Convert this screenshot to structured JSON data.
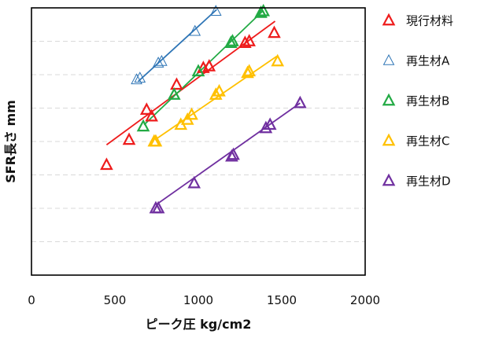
{
  "chart_data": {
    "type": "scatter",
    "xlabel": "ピーク圧 kg/cm2",
    "ylabel": "SFR長さ mm",
    "xlim": [
      0,
      2000
    ],
    "ylim": [
      0,
      8
    ],
    "x_ticks": [
      0,
      500,
      1000,
      1500,
      2000
    ],
    "x_tick_labels": [
      "0",
      "500",
      "1000",
      "1500",
      "2000"
    ],
    "y_tick_labels_shown": false,
    "grid": "horizontal dashed",
    "legend_position": "right",
    "series": [
      {
        "name": "現行材料",
        "color": "#ee1c1c",
        "marker": "triangle-bold",
        "points": [
          [
            450,
            3.3
          ],
          [
            585,
            4.05
          ],
          [
            690,
            4.95
          ],
          [
            720,
            4.75
          ],
          [
            870,
            5.7
          ],
          [
            1030,
            6.2
          ],
          [
            1065,
            6.25
          ],
          [
            1280,
            6.95
          ],
          [
            1305,
            7.0
          ],
          [
            1455,
            7.25
          ]
        ],
        "trendline": [
          [
            450,
            3.9
          ],
          [
            1460,
            7.6
          ]
        ]
      },
      {
        "name": "再生材A",
        "color": "#2e75b6",
        "marker": "triangle-thin",
        "points": [
          [
            630,
            5.85
          ],
          [
            650,
            5.9
          ],
          [
            760,
            6.35
          ],
          [
            780,
            6.4
          ],
          [
            980,
            7.3
          ],
          [
            1105,
            7.9
          ]
        ],
        "trendline": [
          [
            640,
            5.8
          ],
          [
            1110,
            7.95
          ]
        ]
      },
      {
        "name": "再生材B",
        "color": "#22aa44",
        "marker": "triangle-bold",
        "points": [
          [
            670,
            4.45
          ],
          [
            855,
            5.4
          ],
          [
            1000,
            6.1
          ],
          [
            1195,
            6.95
          ],
          [
            1205,
            7.0
          ],
          [
            1375,
            7.85
          ],
          [
            1390,
            7.9
          ]
        ],
        "trendline": [
          [
            675,
            4.5
          ],
          [
            1385,
            7.9
          ]
        ]
      },
      {
        "name": "再生材C",
        "color": "#ffc000",
        "marker": "triangle-bold",
        "points": [
          [
            735,
            4.0
          ],
          [
            745,
            4.0
          ],
          [
            895,
            4.5
          ],
          [
            935,
            4.65
          ],
          [
            960,
            4.8
          ],
          [
            1105,
            5.4
          ],
          [
            1125,
            5.5
          ],
          [
            1295,
            6.05
          ],
          [
            1305,
            6.1
          ],
          [
            1475,
            6.4
          ]
        ],
        "trendline": [
          [
            740,
            4.05
          ],
          [
            1470,
            6.55
          ]
        ]
      },
      {
        "name": "再生材D",
        "color": "#7030a0",
        "marker": "triangle-bold",
        "points": [
          [
            745,
            2.0
          ],
          [
            760,
            2.0
          ],
          [
            975,
            2.75
          ],
          [
            1200,
            3.55
          ],
          [
            1210,
            3.6
          ],
          [
            1405,
            4.4
          ],
          [
            1430,
            4.5
          ],
          [
            1610,
            5.15
          ]
        ],
        "trendline": [
          [
            745,
            2.1
          ],
          [
            1610,
            5.15
          ]
        ]
      }
    ]
  }
}
